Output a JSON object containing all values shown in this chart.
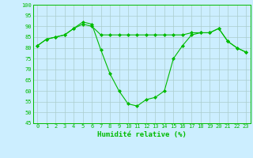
{
  "x": [
    0,
    1,
    2,
    3,
    4,
    5,
    6,
    7,
    8,
    9,
    10,
    11,
    12,
    13,
    14,
    15,
    16,
    17,
    18,
    19,
    20,
    21,
    22,
    23
  ],
  "series1": [
    81,
    84,
    85,
    86,
    89,
    91,
    90,
    86,
    86,
    86,
    86,
    86,
    86,
    86,
    86,
    86,
    86,
    87,
    87,
    87,
    89,
    83,
    80,
    78
  ],
  "series2": [
    81,
    84,
    85,
    86,
    89,
    92,
    91,
    79,
    68,
    60,
    54,
    53,
    56,
    57,
    60,
    75,
    81,
    86,
    87,
    87,
    89,
    83,
    80,
    78
  ],
  "line_color": "#00bb00",
  "marker": "D",
  "marker_size": 2,
  "bg_color": "#cceeff",
  "grid_color": "#aacccc",
  "xlabel": "Humidité relative (%)",
  "ylim": [
    45,
    100
  ],
  "yticks": [
    45,
    50,
    55,
    60,
    65,
    70,
    75,
    80,
    85,
    90,
    95,
    100
  ],
  "xticks": [
    0,
    1,
    2,
    3,
    4,
    5,
    6,
    7,
    8,
    9,
    10,
    11,
    12,
    13,
    14,
    15,
    16,
    17,
    18,
    19,
    20,
    21,
    22,
    23
  ],
  "xlabel_fontsize": 6.5,
  "tick_fontsize": 5
}
